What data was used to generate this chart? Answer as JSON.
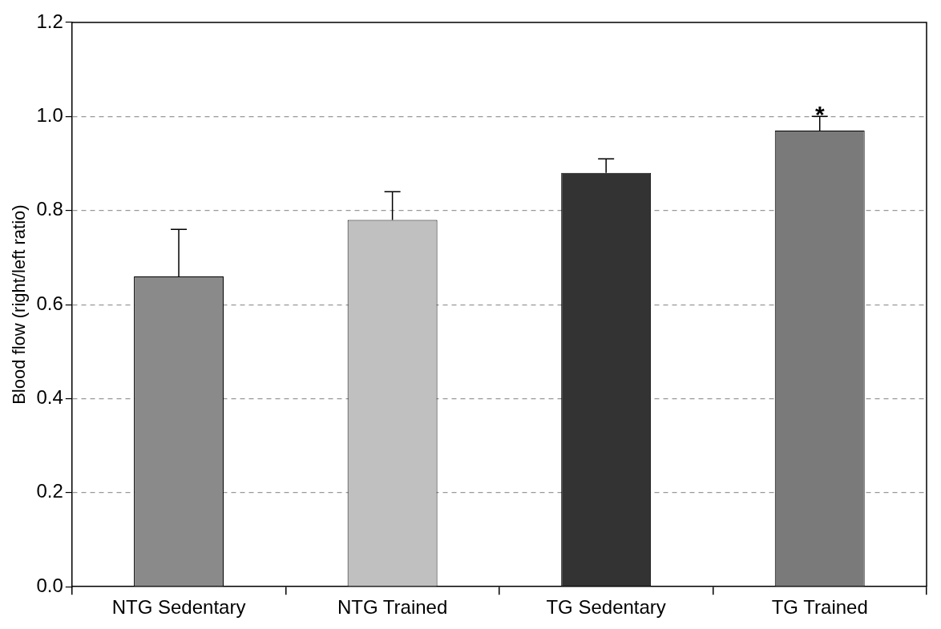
{
  "chart_data": {
    "type": "bar",
    "ylabel": "Blood flow (right/left ratio)",
    "categories": [
      "NTG Sedentary",
      "NTG Trained",
      "TG Sedentary",
      "TG Trained"
    ],
    "values": [
      0.66,
      0.78,
      0.88,
      0.97
    ],
    "colors": [
      "#8a8a8a",
      "#c0c0c0",
      "#333333",
      "#7a7a7a"
    ],
    "errors": [
      [
        0.66,
        0.76
      ],
      [
        0.78,
        0.84
      ],
      [
        0.88,
        0.91
      ],
      [
        0.97,
        1.0
      ]
    ],
    "ylim": [
      0,
      1.2
    ],
    "yticks": [
      {
        "value": 0,
        "label": "0.0"
      },
      {
        "value": 0.2,
        "label": "0.2"
      },
      {
        "value": 0.4,
        "label": "0.4"
      },
      {
        "value": 0.6,
        "label": "0.6"
      },
      {
        "value": 0.8,
        "label": "0.8"
      },
      {
        "value": 1.0,
        "label": "1.0"
      },
      {
        "value": 1.2,
        "label": "1.2"
      }
    ],
    "grid": "y",
    "legend": false,
    "annotations": [
      {
        "text": "*",
        "x": "TG Trained",
        "y": 1.0
      }
    ]
  }
}
